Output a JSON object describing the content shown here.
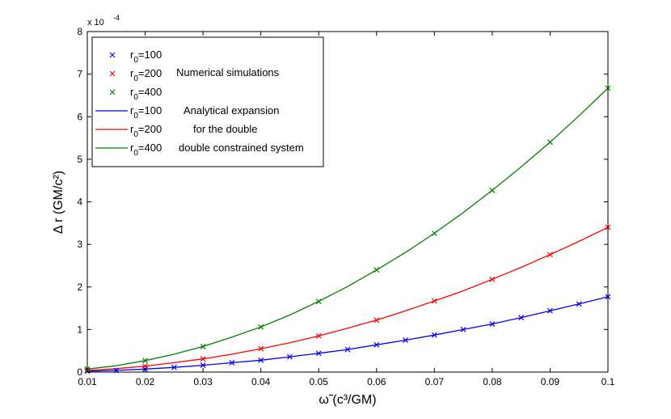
{
  "chart_data": {
    "type": "line",
    "title": "",
    "xlabel": "ω̃ (c³/GM)",
    "ylabel": "Δ r (GM/c²)",
    "y_multiplier": "x 10",
    "y_exponent": "-4",
    "xlim": [
      0.01,
      0.1
    ],
    "ylim": [
      0,
      8
    ],
    "y_scale_note": "y values in units of 1e-4",
    "x_ticks": [
      0.01,
      0.02,
      0.03,
      0.04,
      0.05,
      0.06,
      0.07,
      0.08,
      0.09,
      0.1
    ],
    "x_tick_labels": [
      "0.01",
      "0.02",
      "0.03",
      "0.04",
      "0.05",
      "0.06",
      "0.07",
      "0.08",
      "0.09",
      "0.1"
    ],
    "y_ticks": [
      0,
      1,
      2,
      3,
      4,
      5,
      6,
      7,
      8
    ],
    "y_tick_labels": [
      "0",
      "1",
      "2",
      "3",
      "4",
      "5",
      "6",
      "7",
      "8"
    ],
    "grid": false,
    "legend_position": "top-left",
    "colors": {
      "r100": "#0000ff",
      "r200": "#ff0000",
      "r400": "#007f00"
    },
    "legend": {
      "numerical_text": "Numerical simulations",
      "analytical_text_1": "Analytical expansion",
      "analytical_text_2": "for the double",
      "analytical_text_3": "double constrained system",
      "entries": [
        {
          "kind": "marker",
          "r_label": "r",
          "r_sub": "0",
          "r_value": "=100",
          "color": "#0000ff"
        },
        {
          "kind": "marker",
          "r_label": "r",
          "r_sub": "0",
          "r_value": "=200",
          "color": "#ff0000"
        },
        {
          "kind": "marker",
          "r_label": "r",
          "r_sub": "0",
          "r_value": "=400",
          "color": "#007f00"
        },
        {
          "kind": "line",
          "r_label": "r",
          "r_sub": "0",
          "r_value": "=100",
          "color": "#0000ff"
        },
        {
          "kind": "line",
          "r_label": "r",
          "r_sub": "0",
          "r_value": "=200",
          "color": "#ff0000"
        },
        {
          "kind": "line",
          "r_label": "r",
          "r_sub": "0",
          "r_value": "=400",
          "color": "#007f00"
        }
      ]
    },
    "series": [
      {
        "name": "r0=100 Numerical simulations",
        "kind": "scatter",
        "color": "#0000ff",
        "x": [
          0.01,
          0.015,
          0.02,
          0.025,
          0.03,
          0.035,
          0.04,
          0.045,
          0.05,
          0.055,
          0.06,
          0.065,
          0.07,
          0.075,
          0.08,
          0.085,
          0.09,
          0.095,
          0.1
        ],
        "y": [
          0.02,
          0.04,
          0.07,
          0.11,
          0.16,
          0.22,
          0.28,
          0.36,
          0.44,
          0.53,
          0.64,
          0.75,
          0.87,
          1.0,
          1.13,
          1.28,
          1.44,
          1.6,
          1.77
        ]
      },
      {
        "name": "r0=200 Numerical simulations",
        "kind": "scatter",
        "color": "#ff0000",
        "x": [
          0.01,
          0.02,
          0.03,
          0.04,
          0.05,
          0.06,
          0.07,
          0.08,
          0.09,
          0.1
        ],
        "y": [
          0.04,
          0.14,
          0.31,
          0.55,
          0.85,
          1.22,
          1.67,
          2.18,
          2.76,
          3.4
        ]
      },
      {
        "name": "r0=400 Numerical simulations",
        "kind": "scatter",
        "color": "#007f00",
        "x": [
          0.01,
          0.02,
          0.03,
          0.04,
          0.05,
          0.06,
          0.07,
          0.08,
          0.09,
          0.1
        ],
        "y": [
          0.07,
          0.27,
          0.6,
          1.06,
          1.66,
          2.4,
          3.26,
          4.27,
          5.4,
          6.67
        ]
      },
      {
        "name": "r0=100 Analytical expansion",
        "kind": "line",
        "color": "#0000ff",
        "x": [
          0.01,
          0.015,
          0.02,
          0.025,
          0.03,
          0.035,
          0.04,
          0.045,
          0.05,
          0.055,
          0.06,
          0.065,
          0.07,
          0.075,
          0.08,
          0.085,
          0.09,
          0.095,
          0.1
        ],
        "y": [
          0.02,
          0.04,
          0.07,
          0.11,
          0.16,
          0.22,
          0.28,
          0.36,
          0.44,
          0.53,
          0.64,
          0.75,
          0.87,
          1.0,
          1.13,
          1.28,
          1.44,
          1.6,
          1.77
        ]
      },
      {
        "name": "r0=200 Analytical expansion",
        "kind": "line",
        "color": "#ff0000",
        "x": [
          0.01,
          0.015,
          0.02,
          0.025,
          0.03,
          0.035,
          0.04,
          0.045,
          0.05,
          0.055,
          0.06,
          0.065,
          0.07,
          0.075,
          0.08,
          0.085,
          0.09,
          0.095,
          0.1
        ],
        "y": [
          0.04,
          0.08,
          0.14,
          0.22,
          0.31,
          0.42,
          0.55,
          0.69,
          0.85,
          1.03,
          1.22,
          1.44,
          1.67,
          1.91,
          2.18,
          2.46,
          2.76,
          3.07,
          3.4
        ]
      },
      {
        "name": "r0=400 Analytical expansion",
        "kind": "line",
        "color": "#007f00",
        "x": [
          0.01,
          0.015,
          0.02,
          0.025,
          0.03,
          0.035,
          0.04,
          0.045,
          0.05,
          0.055,
          0.06,
          0.065,
          0.07,
          0.075,
          0.08,
          0.085,
          0.09,
          0.095,
          0.1
        ],
        "y": [
          0.07,
          0.15,
          0.27,
          0.42,
          0.6,
          0.82,
          1.06,
          1.34,
          1.66,
          2.01,
          2.4,
          2.81,
          3.26,
          3.75,
          4.27,
          4.82,
          5.4,
          6.02,
          6.67
        ]
      }
    ]
  }
}
